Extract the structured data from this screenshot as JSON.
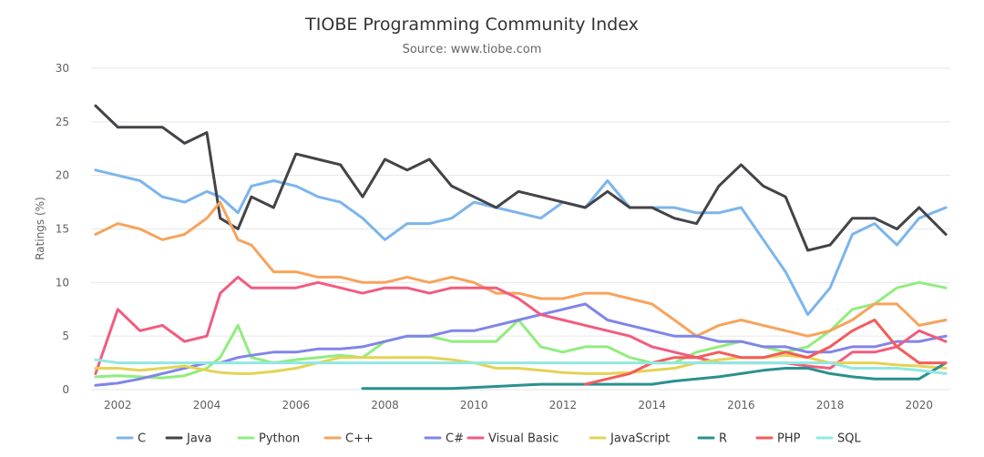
{
  "chart_data": {
    "type": "line",
    "title": "TIOBE Programming Community Index",
    "subtitle": "Source: www.tiobe.com",
    "ylabel": "Ratings (%)",
    "xlabel": "",
    "ylim": [
      0,
      30
    ],
    "xlim": [
      2001.4,
      2020.7
    ],
    "yticks": [
      "0",
      "5",
      "10",
      "15",
      "20",
      "25",
      "30"
    ],
    "xticks": [
      "2002",
      "2004",
      "2006",
      "2008",
      "2010",
      "2012",
      "2014",
      "2016",
      "2018",
      "2020"
    ],
    "grid": true,
    "legend": "bottom",
    "x": [
      2001.5,
      2002,
      2002.5,
      2003,
      2003.5,
      2004,
      2004.3,
      2004.7,
      2005,
      2005.5,
      2006,
      2006.5,
      2007,
      2007.5,
      2008,
      2008.5,
      2009,
      2009.5,
      2010,
      2010.5,
      2011,
      2011.5,
      2012,
      2012.5,
      2013,
      2013.5,
      2014,
      2014.5,
      2015,
      2015.5,
      2016,
      2016.5,
      2017,
      2017.5,
      2018,
      2018.5,
      2019,
      2019.5,
      2020,
      2020.6
    ],
    "series": [
      {
        "name": "C",
        "color": "#7cb5ec",
        "values": [
          20.5,
          20.0,
          19.5,
          18.0,
          17.5,
          18.5,
          18.0,
          16.5,
          19.0,
          19.5,
          19.0,
          18.0,
          17.5,
          16.0,
          14.0,
          15.5,
          15.5,
          16.0,
          17.5,
          17.0,
          16.5,
          16.0,
          17.5,
          17.0,
          19.5,
          17.0,
          17.0,
          17.0,
          16.5,
          16.5,
          17.0,
          14.0,
          11.0,
          7.0,
          9.5,
          14.5,
          15.5,
          13.5,
          16.0,
          17.0
        ]
      },
      {
        "name": "Java",
        "color": "#434348",
        "values": [
          26.5,
          24.5,
          24.5,
          24.5,
          23.0,
          24.0,
          16.0,
          15.0,
          18.0,
          17.0,
          22.0,
          21.5,
          21.0,
          18.0,
          21.5,
          20.5,
          21.5,
          19.0,
          18.0,
          17.0,
          18.5,
          18.0,
          17.5,
          17.0,
          18.5,
          17.0,
          17.0,
          16.0,
          15.5,
          19.0,
          21.0,
          19.0,
          18.0,
          13.0,
          13.5,
          16.0,
          16.0,
          15.0,
          17.0,
          14.5
        ]
      },
      {
        "name": "Python",
        "color": "#90ed7d",
        "values": [
          1.2,
          1.3,
          1.2,
          1.1,
          1.3,
          2.0,
          3.0,
          6.0,
          3.0,
          2.5,
          2.8,
          3.0,
          3.2,
          3.0,
          4.5,
          5.0,
          5.0,
          4.5,
          4.5,
          4.5,
          6.5,
          4.0,
          3.5,
          4.0,
          4.0,
          3.0,
          2.5,
          2.5,
          3.5,
          4.0,
          4.5,
          4.0,
          3.5,
          4.0,
          5.5,
          7.5,
          8.0,
          9.5,
          10.0,
          9.5
        ]
      },
      {
        "name": "C++",
        "color": "#f7a35c",
        "values": [
          14.5,
          15.5,
          15.0,
          14.0,
          14.5,
          16.0,
          17.5,
          14.0,
          13.5,
          11.0,
          11.0,
          10.5,
          10.5,
          10.0,
          10.0,
          10.5,
          10.0,
          10.5,
          10.0,
          9.0,
          9.0,
          8.5,
          8.5,
          9.0,
          9.0,
          8.5,
          8.0,
          6.5,
          5.0,
          6.0,
          6.5,
          6.0,
          5.5,
          5.0,
          5.5,
          6.5,
          8.0,
          8.0,
          6.0,
          6.5
        ]
      },
      {
        "name": "C#",
        "color": "#8085e9",
        "values": [
          0.4,
          0.6,
          1.0,
          1.5,
          2.0,
          2.5,
          2.5,
          3.0,
          3.2,
          3.5,
          3.5,
          3.8,
          3.8,
          4.0,
          4.5,
          5.0,
          5.0,
          5.5,
          5.5,
          6.0,
          6.5,
          7.0,
          7.5,
          8.0,
          6.5,
          6.0,
          5.5,
          5.0,
          5.0,
          4.5,
          4.5,
          4.0,
          4.0,
          3.5,
          3.5,
          4.0,
          4.0,
          4.5,
          4.5,
          5.0
        ]
      },
      {
        "name": "Visual Basic",
        "color": "#f15c80",
        "values": [
          1.5,
          7.5,
          5.5,
          6.0,
          4.5,
          5.0,
          9.0,
          10.5,
          9.5,
          9.5,
          9.5,
          10.0,
          9.5,
          9.0,
          9.5,
          9.5,
          9.0,
          9.5,
          9.5,
          9.5,
          8.5,
          7.0,
          6.5,
          6.0,
          5.5,
          5.0,
          4.0,
          3.5,
          3.0,
          2.5,
          2.5,
          2.5,
          2.5,
          2.2,
          2.0,
          3.5,
          3.5,
          4.0,
          5.5,
          4.5
        ]
      },
      {
        "name": "JavaScript",
        "color": "#e4d354",
        "values": [
          2.0,
          2.0,
          1.8,
          2.0,
          2.2,
          1.8,
          1.6,
          1.5,
          1.5,
          1.7,
          2.0,
          2.5,
          3.0,
          3.0,
          3.0,
          3.0,
          3.0,
          2.8,
          2.5,
          2.0,
          2.0,
          1.8,
          1.6,
          1.5,
          1.5,
          1.6,
          1.8,
          2.0,
          2.5,
          2.8,
          3.0,
          3.0,
          3.2,
          3.0,
          2.5,
          2.5,
          2.5,
          2.3,
          2.2,
          2.0
        ]
      },
      {
        "name": "R",
        "color": "#2b908f",
        "values": [
          null,
          null,
          null,
          null,
          null,
          null,
          null,
          null,
          null,
          null,
          null,
          null,
          null,
          0.1,
          0.1,
          0.1,
          0.1,
          0.1,
          0.2,
          0.3,
          0.4,
          0.5,
          0.5,
          0.5,
          0.5,
          0.5,
          0.5,
          0.8,
          1.0,
          1.2,
          1.5,
          1.8,
          2.0,
          2.0,
          1.5,
          1.2,
          1.0,
          1.0,
          1.0,
          2.5
        ]
      },
      {
        "name": "PHP",
        "color": "#f45b5b",
        "values": [
          null,
          null,
          null,
          null,
          null,
          null,
          null,
          null,
          null,
          null,
          null,
          null,
          null,
          null,
          null,
          null,
          null,
          null,
          null,
          null,
          null,
          null,
          null,
          0.5,
          1.0,
          1.5,
          2.5,
          3.0,
          3.0,
          3.5,
          3.0,
          3.0,
          3.5,
          3.0,
          4.0,
          5.5,
          6.5,
          4.0,
          2.5,
          2.5
        ]
      },
      {
        "name": "SQL",
        "color": "#91e8e1",
        "values": [
          2.8,
          2.5,
          2.5,
          2.5,
          2.5,
          2.5,
          2.5,
          2.5,
          2.5,
          2.5,
          2.5,
          2.5,
          2.5,
          2.5,
          2.5,
          2.5,
          2.5,
          2.5,
          2.5,
          2.5,
          2.5,
          2.5,
          2.5,
          2.5,
          2.5,
          2.5,
          2.5,
          2.5,
          2.5,
          2.5,
          2.5,
          2.5,
          2.5,
          2.5,
          2.5,
          2.0,
          2.0,
          2.0,
          1.8,
          1.5
        ]
      }
    ]
  }
}
